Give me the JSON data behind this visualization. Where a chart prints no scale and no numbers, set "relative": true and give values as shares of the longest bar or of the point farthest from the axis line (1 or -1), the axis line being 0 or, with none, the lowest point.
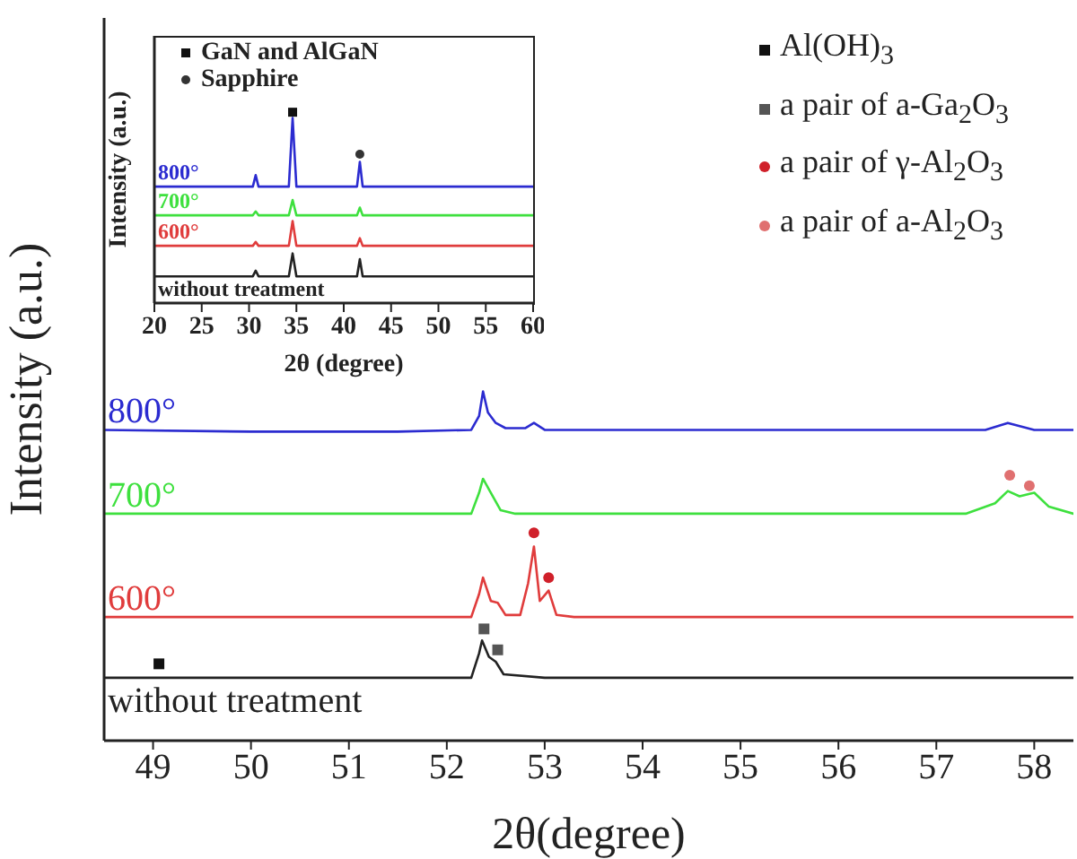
{
  "chart_data": [
    {
      "type": "line",
      "relative": true,
      "xlabel": "2θ(degree)",
      "ylabel": "Intensity (a.u.)",
      "xlim": [
        48.5,
        58.4
      ],
      "xticks": [
        49,
        50,
        51,
        52,
        53,
        54,
        55,
        56,
        57,
        58
      ],
      "tick_labels": "x",
      "grid": false,
      "legend": "top right",
      "series": [
        {
          "name": "800°",
          "color": "#2b2bd0",
          "x": [
            48.5,
            50.0,
            51.5,
            52.25,
            52.33,
            52.37,
            52.42,
            52.5,
            52.6,
            52.8,
            52.89,
            53.0,
            55.0,
            57.5,
            57.73,
            58.0,
            58.4
          ],
          "values": [
            0.89,
            0.885,
            0.885,
            0.89,
            0.93,
            1.0,
            0.94,
            0.91,
            0.895,
            0.895,
            0.91,
            0.89,
            0.89,
            0.89,
            0.91,
            0.89,
            0.89
          ]
        },
        {
          "name": "700°",
          "color": "#3ee03e",
          "x": [
            48.5,
            50.0,
            52.25,
            52.33,
            52.37,
            52.45,
            52.55,
            52.7,
            55.0,
            57.3,
            57.6,
            57.73,
            57.85,
            58.0,
            58.15,
            58.4
          ],
          "values": [
            0.65,
            0.65,
            0.65,
            0.71,
            0.75,
            0.71,
            0.66,
            0.65,
            0.65,
            0.65,
            0.68,
            0.715,
            0.7,
            0.71,
            0.67,
            0.65
          ]
        },
        {
          "name": "600°",
          "color": "#e03c3c",
          "x": [
            48.5,
            50.0,
            52.25,
            52.33,
            52.37,
            52.45,
            52.52,
            52.6,
            52.75,
            52.83,
            52.89,
            52.95,
            53.04,
            53.12,
            53.3,
            58.4
          ],
          "values": [
            0.354,
            0.354,
            0.354,
            0.42,
            0.467,
            0.4,
            0.395,
            0.36,
            0.36,
            0.45,
            0.556,
            0.4,
            0.43,
            0.36,
            0.354,
            0.354
          ]
        },
        {
          "name": "without treatment",
          "color": "#222222",
          "x": [
            48.5,
            50.0,
            52.25,
            52.33,
            52.36,
            52.43,
            52.5,
            52.58,
            53.0,
            58.4
          ],
          "values": [
            0.18,
            0.18,
            0.18,
            0.25,
            0.287,
            0.24,
            0.226,
            0.19,
            0.18,
            0.18
          ]
        },
        {
          "type": "scatter",
          "name": "Al(OH)$_{3}$",
          "color": "#111111",
          "marker": "square",
          "x": [
            49.06
          ],
          "values": [
            0.22
          ]
        },
        {
          "type": "scatter",
          "name": "a pair of a-Ga$_{2}$O$_{3}$",
          "color": "#555555",
          "marker": "square",
          "x": [
            52.38,
            52.52
          ],
          "values": [
            0.32,
            0.26
          ]
        },
        {
          "type": "scatter",
          "name": "a pair of γ-Al$_{2}$O$_{3}$",
          "color": "#d0202a",
          "marker": "circle",
          "x": [
            52.89,
            53.04
          ],
          "values": [
            0.595,
            0.467
          ]
        },
        {
          "type": "scatter",
          "name": "a pair of a-Al$_{2}$O$_{3}$",
          "color": "#e07070",
          "marker": "circle",
          "x": [
            57.75,
            57.95
          ],
          "values": [
            0.76,
            0.73
          ]
        }
      ]
    },
    {
      "type": "line",
      "relative": true,
      "xlabel": "2θ (degree)",
      "ylabel": "Intensity (a.u.)",
      "xlim": [
        20,
        60
      ],
      "xticks": [
        20,
        25,
        30,
        35,
        40,
        45,
        50,
        55,
        60
      ],
      "tick_labels": "x",
      "grid": false,
      "legend": "top left",
      "series": [
        {
          "name": "800°",
          "color": "#2b2bd0",
          "x": [
            20,
            30.4,
            30.7,
            31.0,
            34.2,
            34.6,
            35.0,
            41.4,
            41.7,
            42.0,
            60
          ],
          "values": [
            0.61,
            0.61,
            0.67,
            0.61,
            0.61,
            0.97,
            0.61,
            0.61,
            0.74,
            0.61,
            0.61
          ]
        },
        {
          "name": "700°",
          "color": "#3ee03e",
          "x": [
            20,
            30.4,
            30.7,
            31.0,
            34.2,
            34.6,
            35.0,
            41.4,
            41.7,
            42.0,
            60
          ],
          "values": [
            0.46,
            0.46,
            0.48,
            0.46,
            0.46,
            0.54,
            0.46,
            0.46,
            0.5,
            0.46,
            0.46
          ]
        },
        {
          "name": "600°",
          "color": "#e03c3c",
          "x": [
            20,
            30.4,
            30.7,
            31.0,
            34.2,
            34.6,
            35.0,
            41.4,
            41.7,
            42.0,
            60
          ],
          "values": [
            0.3,
            0.3,
            0.32,
            0.3,
            0.3,
            0.43,
            0.3,
            0.3,
            0.34,
            0.3,
            0.3
          ]
        },
        {
          "name": "without treatment",
          "color": "#222222",
          "x": [
            20,
            30.4,
            30.7,
            31.0,
            34.2,
            34.6,
            35.0,
            41.4,
            41.7,
            42.0,
            60
          ],
          "values": [
            0.14,
            0.14,
            0.17,
            0.14,
            0.14,
            0.26,
            0.14,
            0.14,
            0.23,
            0.14,
            0.14
          ]
        },
        {
          "type": "scatter",
          "name": "GaN and AlGaN",
          "color": "#111111",
          "marker": "square",
          "x": [
            34.6
          ],
          "values": [
            1.0
          ]
        },
        {
          "type": "scatter",
          "name": "Sapphire",
          "color": "#333333",
          "marker": "circle",
          "x": [
            41.7
          ],
          "values": [
            0.78
          ]
        }
      ]
    }
  ]
}
